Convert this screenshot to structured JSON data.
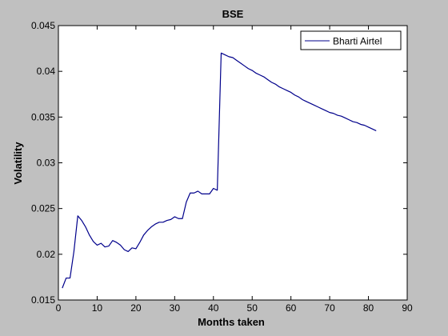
{
  "chart_data": {
    "type": "line",
    "title": "BSE",
    "xlabel": "Months taken",
    "ylabel": "Volatility",
    "xlim": [
      0,
      90
    ],
    "ylim": [
      0.015,
      0.045
    ],
    "x_ticks": [
      "0",
      "10",
      "20",
      "30",
      "40",
      "50",
      "60",
      "70",
      "80",
      "90"
    ],
    "y_ticks": [
      "0.015",
      "0.02",
      "0.025",
      "0.03",
      "0.035",
      "0.04",
      "0.045"
    ],
    "grid": false,
    "legend_position": "top-right",
    "series": [
      {
        "name": "Bharti Airtel",
        "color": "#00008b",
        "x": [
          1,
          2,
          3,
          4,
          5,
          6,
          7,
          8,
          9,
          10,
          11,
          12,
          13,
          14,
          15,
          16,
          17,
          18,
          19,
          20,
          21,
          22,
          23,
          24,
          25,
          26,
          27,
          28,
          29,
          30,
          31,
          32,
          33,
          34,
          35,
          36,
          37,
          38,
          39,
          40,
          41,
          42,
          43,
          44,
          45,
          46,
          47,
          48,
          49,
          50,
          51,
          52,
          53,
          54,
          55,
          56,
          57,
          58,
          59,
          60,
          61,
          62,
          63,
          64,
          65,
          66,
          67,
          68,
          69,
          70,
          71,
          72,
          73,
          74,
          75,
          76,
          77,
          78,
          79,
          80,
          81,
          82
        ],
        "y": [
          0.0163,
          0.0174,
          0.0174,
          0.0203,
          0.0242,
          0.0237,
          0.023,
          0.0221,
          0.0214,
          0.021,
          0.0212,
          0.0208,
          0.0209,
          0.0215,
          0.0213,
          0.021,
          0.0205,
          0.0203,
          0.0207,
          0.0206,
          0.0213,
          0.0221,
          0.0226,
          0.023,
          0.0233,
          0.0235,
          0.0235,
          0.0237,
          0.0238,
          0.0241,
          0.0239,
          0.0239,
          0.0257,
          0.0267,
          0.0267,
          0.0269,
          0.0266,
          0.0266,
          0.0266,
          0.0272,
          0.027,
          0.042,
          0.0418,
          0.0416,
          0.0415,
          0.0412,
          0.0409,
          0.0406,
          0.0403,
          0.0401,
          0.0398,
          0.0396,
          0.0394,
          0.0391,
          0.0388,
          0.0386,
          0.0383,
          0.0381,
          0.0379,
          0.0377,
          0.0374,
          0.0372,
          0.0369,
          0.0367,
          0.0365,
          0.0363,
          0.0361,
          0.0359,
          0.0357,
          0.0355,
          0.0354,
          0.0352,
          0.0351,
          0.0349,
          0.0347,
          0.0345,
          0.0344,
          0.0342,
          0.0341,
          0.0339,
          0.0337,
          0.0335
        ]
      }
    ]
  }
}
